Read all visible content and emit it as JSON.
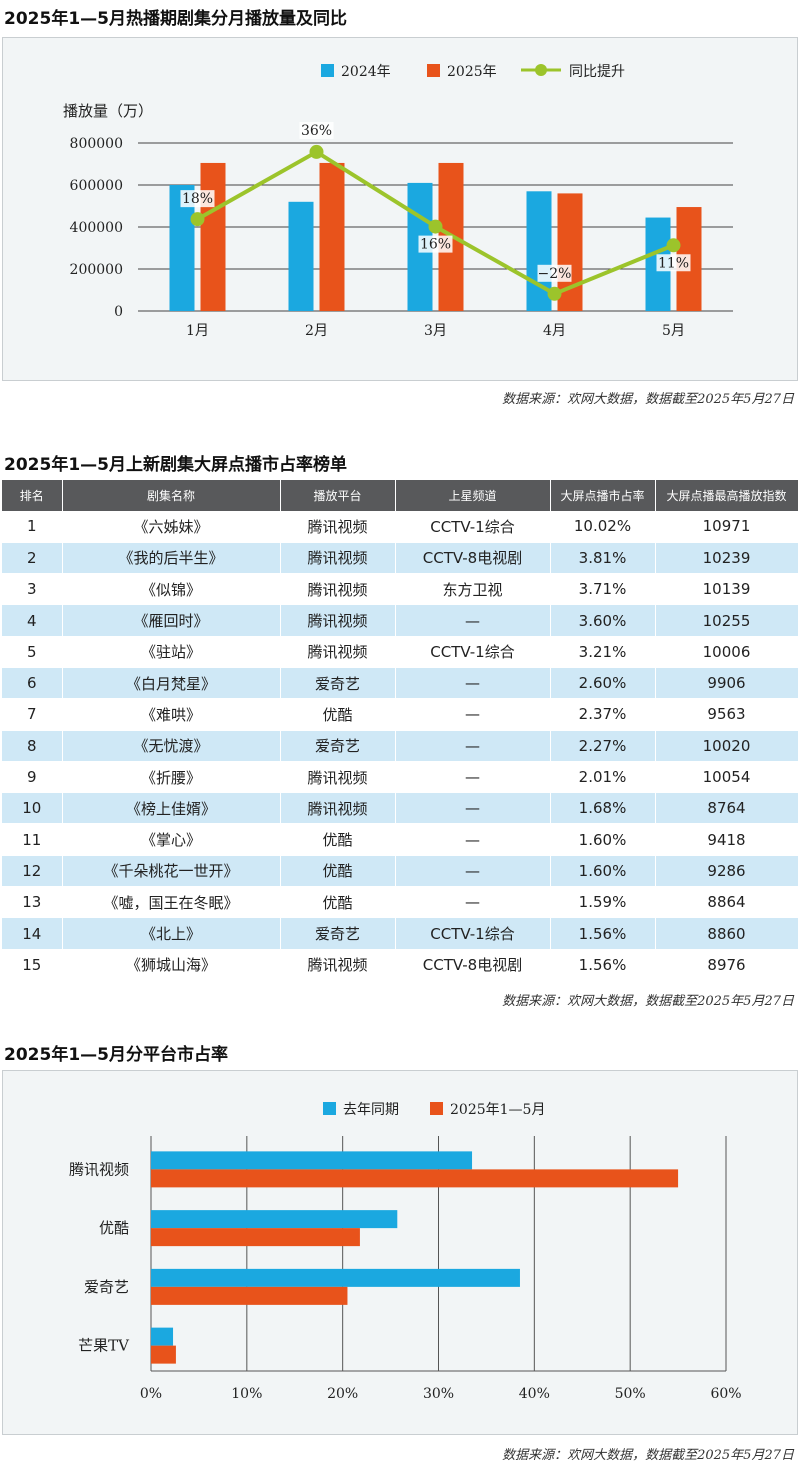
{
  "sections": {
    "chart1_title": "2025年1—5月热播期剧集分月播放量及同比",
    "table_title": "2025年1—5月上新剧集大屏点播市占率榜单",
    "chart2_title": "2025年1—5月分平台市占率",
    "source": "数据来源：欢网大数据，数据截至2025年5月27日"
  },
  "colors": {
    "blue": "#1ba8e0",
    "orange": "#e8531b",
    "green": "#9cc42b",
    "header_bg": "#58595b",
    "stripe": "#cfe8f6"
  },
  "chart_data": [
    {
      "type": "bar",
      "ylabel": "播放量（万）",
      "categories": [
        "1月",
        "2月",
        "3月",
        "4月",
        "5月"
      ],
      "ylim": [
        0,
        800000
      ],
      "yticks": [
        "800000",
        "600000",
        "400000",
        "200000",
        "0"
      ],
      "series": [
        {
          "name": "2024年",
          "values": [
            600000,
            520000,
            610000,
            570000,
            445000
          ]
        },
        {
          "name": "2025年",
          "values": [
            705000,
            705000,
            705000,
            560000,
            495000
          ]
        }
      ],
      "line": {
        "name": "同比提升",
        "values": [
          18,
          36,
          16,
          -2,
          11
        ],
        "labels": [
          "18%",
          "36%",
          "16%",
          "−2%",
          "11%"
        ]
      },
      "legend": "top"
    },
    {
      "type": "table",
      "columns": [
        "排名",
        "剧集名称",
        "播放平台",
        "上星频道",
        "大屏点播市占率",
        "大屏点播最高播放指数"
      ],
      "rows": [
        [
          "1",
          "《六姊妹》",
          "腾讯视频",
          "CCTV-1综合",
          "10.02%",
          "10971"
        ],
        [
          "2",
          "《我的后半生》",
          "腾讯视频",
          "CCTV-8电视剧",
          "3.81%",
          "10239"
        ],
        [
          "3",
          "《似锦》",
          "腾讯视频",
          "东方卫视",
          "3.71%",
          "10139"
        ],
        [
          "4",
          "《雁回时》",
          "腾讯视频",
          "—",
          "3.60%",
          "10255"
        ],
        [
          "5",
          "《驻站》",
          "腾讯视频",
          "CCTV-1综合",
          "3.21%",
          "10006"
        ],
        [
          "6",
          "《白月梵星》",
          "爱奇艺",
          "—",
          "2.60%",
          "9906"
        ],
        [
          "7",
          "《难哄》",
          "优酷",
          "—",
          "2.37%",
          "9563"
        ],
        [
          "8",
          "《无忧渡》",
          "爱奇艺",
          "—",
          "2.27%",
          "10020"
        ],
        [
          "9",
          "《折腰》",
          "腾讯视频",
          "—",
          "2.01%",
          "10054"
        ],
        [
          "10",
          "《榜上佳婿》",
          "腾讯视频",
          "—",
          "1.68%",
          "8764"
        ],
        [
          "11",
          "《掌心》",
          "优酷",
          "—",
          "1.60%",
          "9418"
        ],
        [
          "12",
          "《千朵桃花一世开》",
          "优酷",
          "—",
          "1.60%",
          "9286"
        ],
        [
          "13",
          "《嘘，国王在冬眠》",
          "优酷",
          "—",
          "1.59%",
          "8864"
        ],
        [
          "14",
          "《北上》",
          "爱奇艺",
          "CCTV-1综合",
          "1.56%",
          "8860"
        ],
        [
          "15",
          "《狮城山海》",
          "腾讯视频",
          "CCTV-8电视剧",
          "1.56%",
          "8976"
        ]
      ]
    },
    {
      "type": "bar",
      "orientation": "horizontal",
      "categories": [
        "腾讯视频",
        "优酷",
        "爱奇艺",
        "芒果TV"
      ],
      "xlim": [
        0,
        60
      ],
      "xticks": [
        "0%",
        "10%",
        "20%",
        "30%",
        "40%",
        "50%",
        "60%"
      ],
      "series": [
        {
          "name": "去年同期",
          "values": [
            33.5,
            25.7,
            38.5,
            2.3
          ]
        },
        {
          "name": "2025年1—5月",
          "values": [
            55.0,
            21.8,
            20.5,
            2.6
          ]
        }
      ],
      "legend": "top",
      "grid": true
    }
  ]
}
